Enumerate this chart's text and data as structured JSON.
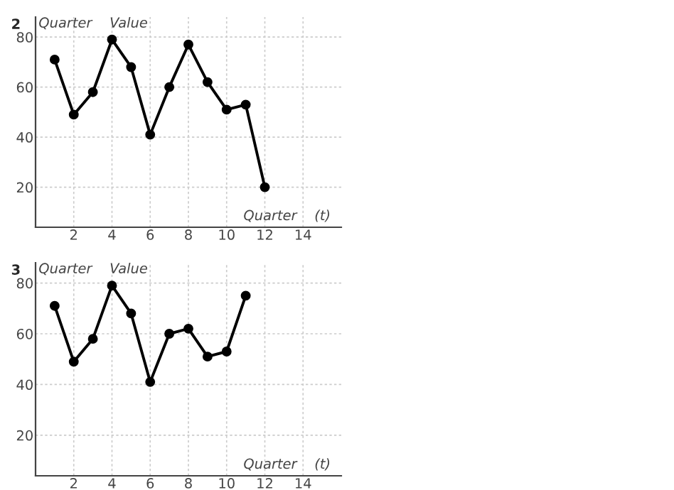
{
  "chart_data": [
    {
      "type": "line",
      "title": "2",
      "xlabel": "Quarter    (t)",
      "ylabel": "Quarter    Value",
      "x": [
        1,
        2,
        3,
        4,
        5,
        6,
        7,
        8,
        9,
        10,
        11,
        12
      ],
      "series": [
        {
          "color": "#000000",
          "values": [
            71,
            49,
            58,
            79,
            68,
            41,
            60,
            77,
            62,
            51,
            53,
            20
          ]
        }
      ],
      "xlim": [
        0,
        16
      ],
      "ylim": [
        4,
        88
      ],
      "xticks": [
        2,
        4,
        6,
        8,
        10,
        12,
        14
      ],
      "yticks": [
        20,
        40,
        60,
        80
      ],
      "grid": true,
      "marker": "circle",
      "line_style": "solid"
    },
    {
      "type": "line",
      "title": "3",
      "xlabel": "Quarter    (t)",
      "ylabel": "Quarter    Value",
      "x": [
        1,
        2,
        3,
        4,
        5,
        6,
        7,
        8,
        9,
        10,
        11
      ],
      "series": [
        {
          "color": "#000000",
          "values": [
            71,
            49,
            58,
            79,
            68,
            41,
            60,
            62,
            51,
            53,
            75
          ]
        }
      ],
      "xlim": [
        0,
        16
      ],
      "ylim": [
        4,
        88
      ],
      "xticks": [
        2,
        4,
        6,
        8,
        10,
        12,
        14
      ],
      "yticks": [
        20,
        40,
        60,
        80
      ],
      "grid": true,
      "marker": "circle",
      "line_style": "solid"
    }
  ]
}
